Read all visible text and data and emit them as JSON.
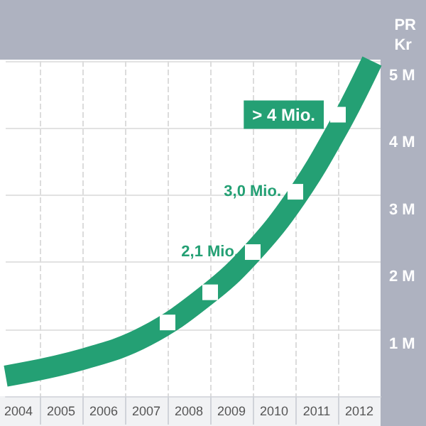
{
  "chart_data": {
    "type": "line",
    "title": "PR\nKr",
    "x": [
      2003.7,
      2005.5,
      2007,
      2008.5,
      2009.5,
      2010.5,
      2011.5,
      2012.3
    ],
    "series": [
      {
        "color": "#24a074",
        "values": [
          0.3,
          0.55,
          0.9,
          1.55,
          2.15,
          2.95,
          4.0,
          5.0
        ]
      },
      {
        "type": "scatter",
        "color": "#ffffff",
        "marker": "square",
        "x": [
          2007.5,
          2008.5,
          2009.5,
          2010.5,
          2011.5
        ],
        "values": [
          1.1,
          1.55,
          2.15,
          3.05,
          4.2
        ]
      }
    ],
    "xlim": [
      2003.7,
      2012.5
    ],
    "xticks": [
      {
        "value": 2004,
        "label": "2004"
      },
      {
        "value": 2004.5,
        "label": null
      },
      {
        "value": 2005,
        "label": "2005"
      },
      {
        "value": 2005.5,
        "label": null
      },
      {
        "value": 2006,
        "label": "2006"
      },
      {
        "value": 2006.5,
        "label": null
      },
      {
        "value": 2007,
        "label": "2007"
      },
      {
        "value": 2007.5,
        "label": null
      },
      {
        "value": 2008,
        "label": "2008"
      },
      {
        "value": 2008.5,
        "label": null
      },
      {
        "value": 2009,
        "label": "2009"
      },
      {
        "value": 2009.5,
        "label": null
      },
      {
        "value": 2010,
        "label": "2010"
      },
      {
        "value": 2010.5,
        "label": null
      },
      {
        "value": 2011,
        "label": "2011"
      },
      {
        "value": 2011.5,
        "label": null
      },
      {
        "value": 2012,
        "label": "2012"
      }
    ],
    "ylim": [
      0,
      5
    ],
    "yticks": [
      {
        "value": 1,
        "label": "1 M"
      },
      {
        "value": 2,
        "label": "2 M"
      },
      {
        "value": 3,
        "label": "3 M"
      },
      {
        "value": 4,
        "label": "4 M"
      },
      {
        "value": 5,
        "label": "5 M"
      }
    ],
    "annotations": [
      {
        "text": "2,1 Mio.",
        "x": 2009.5,
        "y": 2.15
      },
      {
        "text": "3,0 Mio.",
        "x": 2010.5,
        "y": 3.05
      },
      {
        "text": "> 4 Mio.",
        "x": 2011.5,
        "y": 4.2
      }
    ],
    "grid": true
  }
}
